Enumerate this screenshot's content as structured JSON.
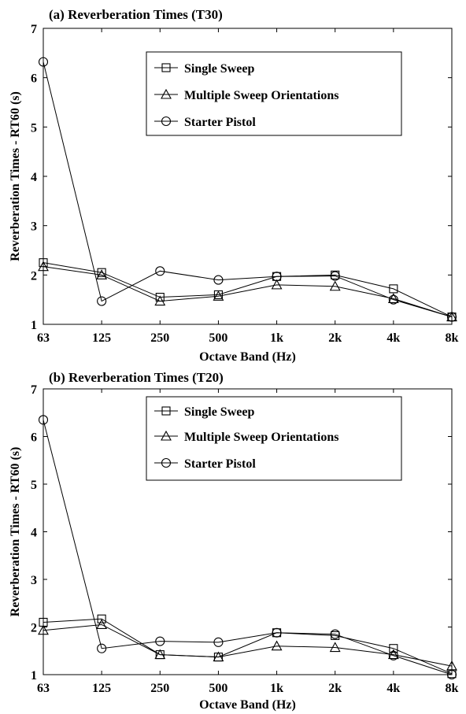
{
  "chart_data": [
    {
      "type": "line",
      "title": "(a) Reverberation Times (T30)",
      "xlabel": "Octave Band (Hz)",
      "ylabel": "Reverberation Times - RT60 (s)",
      "categories": [
        "63",
        "125",
        "250",
        "500",
        "1k",
        "2k",
        "4k",
        "8k"
      ],
      "ylim": [
        1,
        7
      ],
      "yticks": [
        1,
        2,
        3,
        4,
        5,
        6,
        7
      ],
      "grid": false,
      "legend_position": "top-right",
      "series": [
        {
          "name": "Single Sweep",
          "marker": "square",
          "values": [
            2.25,
            2.05,
            1.55,
            1.6,
            1.97,
            2.0,
            1.72,
            1.15
          ]
        },
        {
          "name": "Multiple Sweep Orientations",
          "marker": "triangle",
          "values": [
            2.17,
            2.0,
            1.47,
            1.57,
            1.8,
            1.77,
            1.52,
            1.15
          ]
        },
        {
          "name": "Starter Pistol",
          "marker": "circle",
          "values": [
            6.32,
            1.47,
            2.08,
            1.9,
            1.97,
            1.98,
            1.5,
            1.15
          ]
        }
      ]
    },
    {
      "type": "line",
      "title": "(b) Reverberation Times (T20)",
      "xlabel": "Octave Band (Hz)",
      "ylabel": "Reverberation Times - RT60 (s)",
      "categories": [
        "63",
        "125",
        "250",
        "500",
        "1k",
        "2k",
        "4k",
        "8k"
      ],
      "ylim": [
        1,
        7
      ],
      "yticks": [
        1,
        2,
        3,
        4,
        5,
        6,
        7
      ],
      "grid": false,
      "legend_position": "top-right",
      "series": [
        {
          "name": "Single Sweep",
          "marker": "square",
          "values": [
            2.1,
            2.17,
            1.42,
            1.37,
            1.88,
            1.82,
            1.55,
            1.02
          ]
        },
        {
          "name": "Multiple Sweep Orientations",
          "marker": "triangle",
          "values": [
            1.93,
            2.05,
            1.42,
            1.37,
            1.6,
            1.57,
            1.42,
            1.18
          ]
        },
        {
          "name": "Starter Pistol",
          "marker": "circle",
          "values": [
            6.35,
            1.55,
            1.7,
            1.68,
            1.88,
            1.85,
            1.4,
            1.0
          ]
        }
      ]
    }
  ]
}
